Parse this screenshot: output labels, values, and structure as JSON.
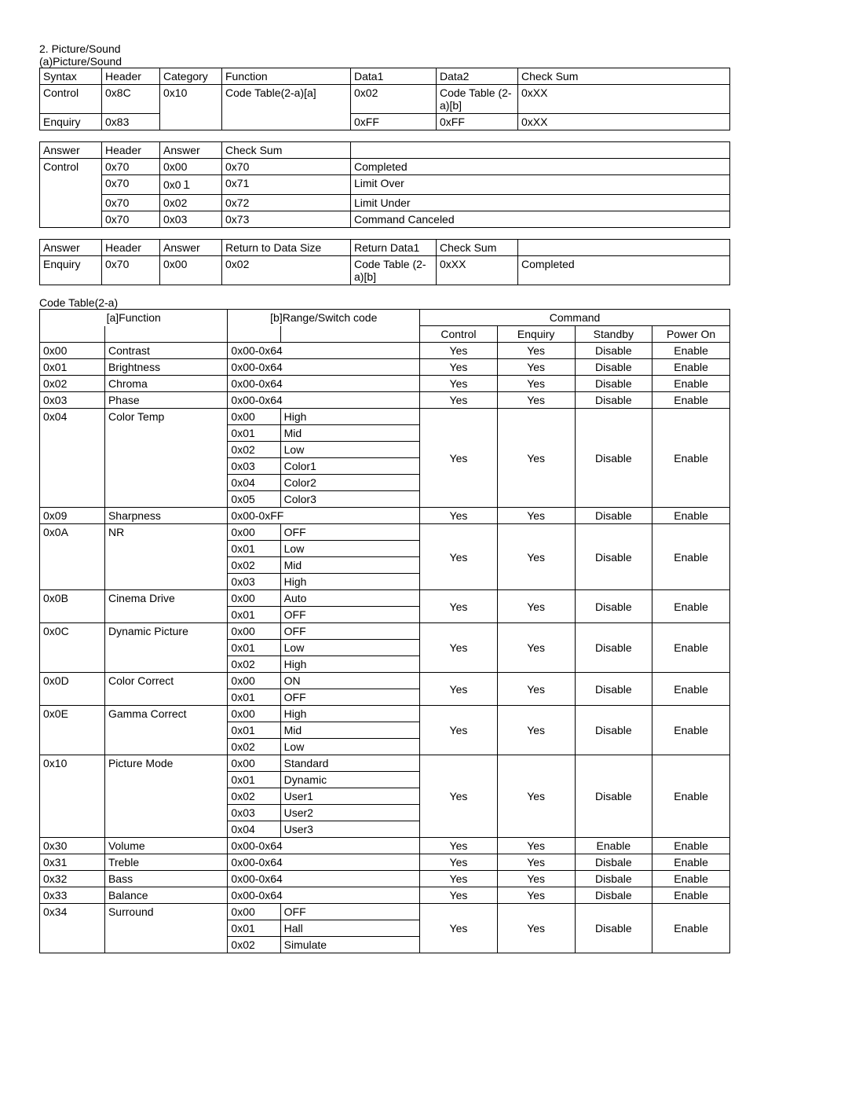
{
  "heading_number": "2. Picture/Sound",
  "heading_sub": "(a)Picture/Sound",
  "table1": {
    "headers": [
      "Syntax",
      "Header",
      "Category",
      "Function",
      "Data1",
      "Data2",
      "Check Sum"
    ],
    "rows": [
      [
        "Control",
        "0x8C",
        "0x10",
        "Code Table(2-a)[a]",
        "0x02",
        "Code Table (2-a)[b]",
        "0xXX"
      ],
      [
        "Enquiry",
        "0x83",
        "",
        "",
        "0xFF",
        "0xFF",
        "0xXX"
      ]
    ]
  },
  "table2": {
    "headers": [
      "Answer",
      "Header",
      "Answer",
      "Check Sum",
      ""
    ],
    "label": "Control",
    "rows": [
      [
        "0x70",
        "0x00",
        "0x70",
        "Completed"
      ],
      [
        "0x70",
        "0x0１",
        "0x71",
        "Limit Over"
      ],
      [
        "0x70",
        "0x02",
        "0x72",
        "Limit Under"
      ],
      [
        "0x70",
        "0x03",
        "0x73",
        "Command Canceled"
      ]
    ]
  },
  "table3": {
    "headers": [
      "Answer",
      "Header",
      "Answer",
      "Return to Data Size",
      "Return Data1",
      "Check Sum",
      ""
    ],
    "rows": [
      [
        "Enquiry",
        "0x70",
        "0x00",
        "0x02",
        "Code Table (2-a)[b]",
        "0xXX",
        "Completed"
      ]
    ]
  },
  "code_table": {
    "title": "Code Table(2-a)",
    "head_function": "[a]Function",
    "head_range": "[b]Range/Switch code",
    "head_command": "Command",
    "cmd_cols": [
      "Control",
      "Enquiry",
      "Standby",
      "Power On"
    ],
    "rows": [
      {
        "code": "0x00",
        "func": "Contrast",
        "range": "0x00-0x64",
        "sub": [],
        "cmd": [
          "Yes",
          "Yes",
          "Disable",
          "Enable"
        ]
      },
      {
        "code": "0x01",
        "func": "Brightness",
        "range": "0x00-0x64",
        "sub": [],
        "cmd": [
          "Yes",
          "Yes",
          "Disable",
          "Enable"
        ]
      },
      {
        "code": "0x02",
        "func": "Chroma",
        "range": "0x00-0x64",
        "sub": [],
        "cmd": [
          "Yes",
          "Yes",
          "Disable",
          "Enable"
        ]
      },
      {
        "code": "0x03",
        "func": "Phase",
        "range": "0x00-0x64",
        "sub": [],
        "cmd": [
          "Yes",
          "Yes",
          "Disable",
          "Enable"
        ]
      },
      {
        "code": "0x04",
        "func": "Color Temp",
        "range": "",
        "sub": [
          [
            "0x00",
            "High"
          ],
          [
            "0x01",
            "Mid"
          ],
          [
            "0x02",
            "Low"
          ],
          [
            "0x03",
            "Color1"
          ],
          [
            "0x04",
            "Color2"
          ],
          [
            "0x05",
            "Color3"
          ]
        ],
        "cmd": [
          "Yes",
          "Yes",
          "Disable",
          "Enable"
        ]
      },
      {
        "code": "0x09",
        "func": "Sharpness",
        "range": "0x00-0xFF",
        "sub": [],
        "cmd": [
          "Yes",
          "Yes",
          "Disable",
          "Enable"
        ]
      },
      {
        "code": "0x0A",
        "func": "NR",
        "range": "",
        "sub": [
          [
            "0x00",
            "OFF"
          ],
          [
            "0x01",
            "Low"
          ],
          [
            "0x02",
            "Mid"
          ],
          [
            "0x03",
            "High"
          ]
        ],
        "cmd": [
          "Yes",
          "Yes",
          "Disable",
          "Enable"
        ]
      },
      {
        "code": "0x0B",
        "func": "Cinema Drive",
        "range": "",
        "sub": [
          [
            "0x00",
            "Auto"
          ],
          [
            "0x01",
            "OFF"
          ]
        ],
        "cmd": [
          "Yes",
          "Yes",
          "Disable",
          "Enable"
        ]
      },
      {
        "code": "0x0C",
        "func": "Dynamic Picture",
        "range": "",
        "sub": [
          [
            "0x00",
            "OFF"
          ],
          [
            "0x01",
            "Low"
          ],
          [
            "0x02",
            "High"
          ]
        ],
        "cmd": [
          "Yes",
          "Yes",
          "Disable",
          "Enable"
        ]
      },
      {
        "code": "0x0D",
        "func": "Color Correct",
        "range": "",
        "sub": [
          [
            "0x00",
            "ON"
          ],
          [
            "0x01",
            "OFF"
          ]
        ],
        "cmd": [
          "Yes",
          "Yes",
          "Disable",
          "Enable"
        ]
      },
      {
        "code": "0x0E",
        "func": "Gamma Correct",
        "range": "",
        "sub": [
          [
            "0x00",
            "High"
          ],
          [
            "0x01",
            "Mid"
          ],
          [
            "0x02",
            "Low"
          ]
        ],
        "cmd": [
          "Yes",
          "Yes",
          "Disable",
          "Enable"
        ]
      },
      {
        "code": "0x10",
        "func": "Picture Mode",
        "range": "",
        "sub": [
          [
            "0x00",
            "Standard"
          ],
          [
            "0x01",
            "Dynamic"
          ],
          [
            "0x02",
            "User1"
          ],
          [
            "0x03",
            "User2"
          ],
          [
            "0x04",
            "User3"
          ]
        ],
        "cmd": [
          "Yes",
          "Yes",
          "Disable",
          "Enable"
        ]
      },
      {
        "code": "0x30",
        "func": "Volume",
        "range": "0x00-0x64",
        "sub": [],
        "cmd": [
          "Yes",
          "Yes",
          "Enable",
          "Enable"
        ]
      },
      {
        "code": "0x31",
        "func": "Treble",
        "range": "0x00-0x64",
        "sub": [],
        "cmd": [
          "Yes",
          "Yes",
          "Disbale",
          "Enable"
        ]
      },
      {
        "code": "0x32",
        "func": "Bass",
        "range": "0x00-0x64",
        "sub": [],
        "cmd": [
          "Yes",
          "Yes",
          "Disbale",
          "Enable"
        ]
      },
      {
        "code": "0x33",
        "func": "Balance",
        "range": "0x00-0x64",
        "sub": [],
        "cmd": [
          "Yes",
          "Yes",
          "Disbale",
          "Enable"
        ]
      },
      {
        "code": "0x34",
        "func": "Surround",
        "range": "",
        "sub": [
          [
            "0x00",
            "OFF"
          ],
          [
            "0x01",
            "Hall"
          ],
          [
            "0x02",
            "Simulate"
          ]
        ],
        "cmd": [
          "Yes",
          "Yes",
          "Disable",
          "Enable"
        ]
      }
    ]
  }
}
